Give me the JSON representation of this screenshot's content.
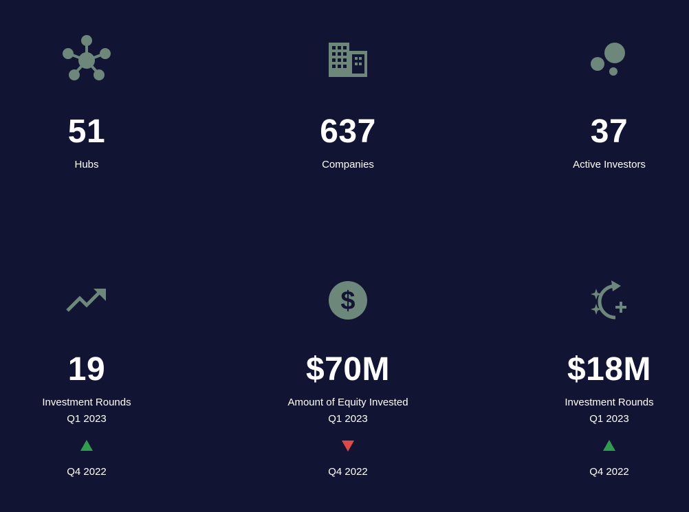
{
  "colors": {
    "background": "#111433",
    "icon": "#6d877a",
    "text": "#ffffff",
    "trend_up": "#2e9e4e",
    "trend_down": "#e04848"
  },
  "top_stats": [
    {
      "icon": "hub-network-icon",
      "value": "51",
      "label": "Hubs"
    },
    {
      "icon": "building-icon",
      "value": "637",
      "label": "Companies"
    },
    {
      "icon": "bubbles-icon",
      "value": "37",
      "label": "Active Investors"
    }
  ],
  "bottom_stats": [
    {
      "icon": "trending-up-icon",
      "value": "19",
      "label": "Investment Rounds",
      "period": "Q1 2023",
      "trend": "up",
      "compare_period": "Q4 2022"
    },
    {
      "icon": "dollar-coin-icon",
      "value": "$70M",
      "label": "Amount of Equity Invested",
      "period": "Q1 2023",
      "trend": "down",
      "compare_period": "Q4 2022"
    },
    {
      "icon": "sparkle-growth-icon",
      "value": "$18M",
      "label": "Investment Rounds",
      "period": "Q1 2023",
      "trend": "up",
      "compare_period": "Q4 2022"
    }
  ]
}
